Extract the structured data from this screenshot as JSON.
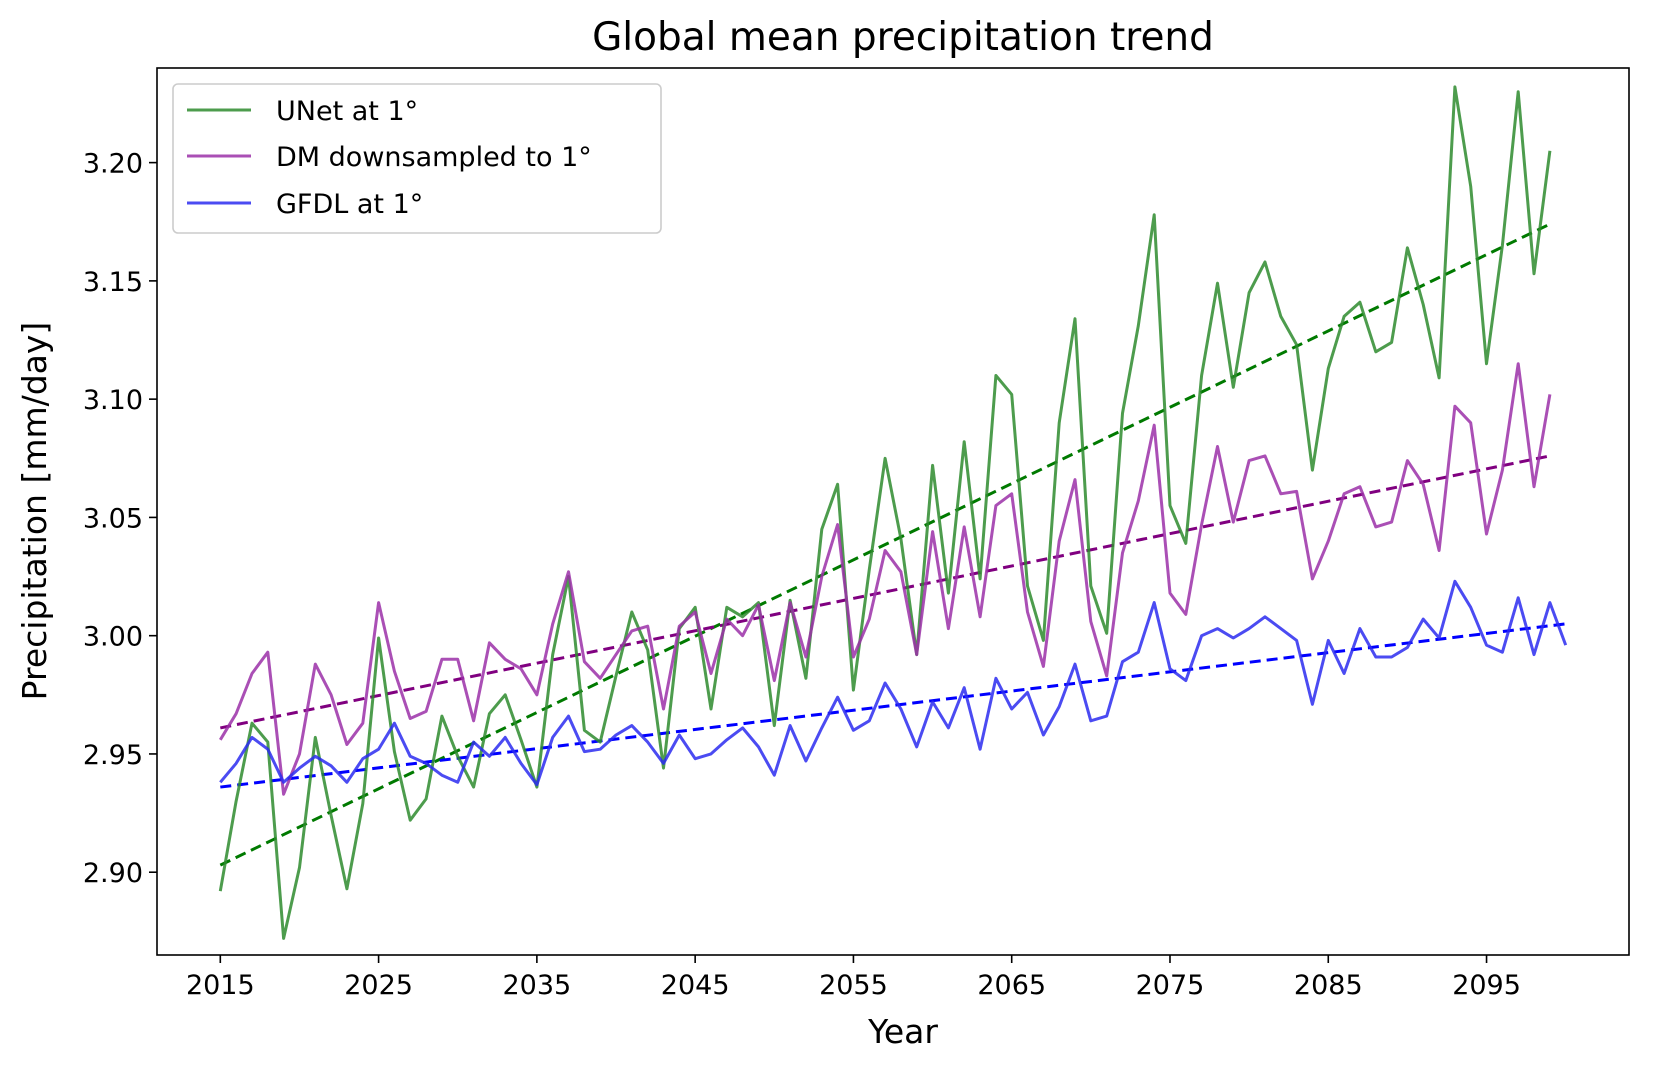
{
  "chart_data": {
    "type": "line",
    "title": "Global mean precipitation trend",
    "xlabel": "Year",
    "ylabel": "Precipitation [mm/day]",
    "xlim": [
      2011,
      2104
    ],
    "ylim": [
      2.865,
      3.24
    ],
    "xticks": [
      2015,
      2025,
      2035,
      2045,
      2055,
      2065,
      2075,
      2085,
      2095
    ],
    "yticks": [
      2.9,
      2.95,
      3.0,
      3.05,
      3.1,
      3.15,
      3.2
    ],
    "ytick_labels": [
      "2.90",
      "2.95",
      "3.00",
      "3.05",
      "3.10",
      "3.15",
      "3.20"
    ],
    "legend_position": "upper-left",
    "series": [
      {
        "name": "UNet at 1°",
        "color": "#2e8b2e",
        "x_start": 2015,
        "values": [
          2.892,
          2.93,
          2.963,
          2.955,
          2.872,
          2.902,
          2.957,
          2.924,
          2.893,
          2.929,
          2.999,
          2.951,
          2.922,
          2.931,
          2.966,
          2.949,
          2.936,
          2.967,
          2.975,
          2.956,
          2.936,
          2.992,
          3.025,
          2.96,
          2.955,
          2.983,
          3.01,
          2.994,
          2.944,
          3.003,
          3.012,
          2.969,
          3.012,
          3.008,
          3.014,
          2.962,
          3.015,
          2.982,
          3.045,
          3.064,
          2.977,
          3.028,
          3.075,
          3.041,
          2.992,
          3.072,
          3.018,
          3.082,
          3.024,
          3.11,
          3.102,
          3.021,
          2.998,
          3.09,
          3.134,
          3.021,
          3.001,
          3.094,
          3.131,
          3.178,
          3.055,
          3.039,
          3.11,
          3.149,
          3.105,
          3.145,
          3.158,
          3.135,
          3.123,
          3.07,
          3.113,
          3.135,
          3.141,
          3.12,
          3.124,
          3.164,
          3.14,
          3.109,
          3.232,
          3.19,
          3.115,
          3.165,
          3.23,
          3.153,
          3.205
        ]
      },
      {
        "name": "DM downsampled to 1°",
        "color": "#9b30a8",
        "x_start": 2015,
        "values": [
          2.956,
          2.967,
          2.984,
          2.993,
          2.933,
          2.95,
          2.988,
          2.975,
          2.954,
          2.963,
          3.014,
          2.985,
          2.965,
          2.968,
          2.99,
          2.99,
          2.964,
          2.997,
          2.99,
          2.986,
          2.975,
          3.005,
          3.027,
          2.989,
          2.982,
          2.992,
          3.002,
          3.004,
          2.969,
          3.004,
          3.01,
          2.984,
          3.007,
          3.0,
          3.013,
          2.981,
          3.014,
          2.991,
          3.025,
          3.047,
          2.991,
          3.007,
          3.036,
          3.027,
          2.992,
          3.044,
          3.003,
          3.046,
          3.008,
          3.055,
          3.06,
          3.01,
          2.987,
          3.04,
          3.066,
          3.006,
          2.983,
          3.035,
          3.057,
          3.089,
          3.018,
          3.009,
          3.047,
          3.08,
          3.048,
          3.074,
          3.076,
          3.06,
          3.061,
          3.024,
          3.04,
          3.06,
          3.063,
          3.046,
          3.048,
          3.074,
          3.064,
          3.036,
          3.097,
          3.09,
          3.043,
          3.07,
          3.115,
          3.063,
          3.102
        ]
      },
      {
        "name": "GFDL at 1°",
        "color": "#2b2bf0",
        "x_start": 2015,
        "values": [
          2.938,
          2.946,
          2.957,
          2.952,
          2.938,
          2.944,
          2.949,
          2.945,
          2.938,
          2.948,
          2.952,
          2.963,
          2.949,
          2.946,
          2.941,
          2.938,
          2.955,
          2.949,
          2.957,
          2.946,
          2.937,
          2.957,
          2.966,
          2.951,
          2.952,
          2.958,
          2.962,
          2.955,
          2.946,
          2.958,
          2.948,
          2.95,
          2.956,
          2.961,
          2.953,
          2.941,
          2.962,
          2.947,
          2.961,
          2.974,
          2.96,
          2.964,
          2.98,
          2.969,
          2.953,
          2.972,
          2.961,
          2.978,
          2.952,
          2.982,
          2.969,
          2.976,
          2.958,
          2.97,
          2.988,
          2.964,
          2.966,
          2.989,
          2.993,
          3.014,
          2.986,
          2.981,
          3.0,
          3.003,
          2.999,
          3.003,
          3.008,
          3.003,
          2.998,
          2.971,
          2.998,
          2.984,
          3.003,
          2.991,
          2.991,
          2.995,
          3.007,
          2.999,
          3.023,
          3.012,
          2.996,
          2.993,
          3.016,
          2.992,
          3.014,
          2.996
        ]
      }
    ],
    "trendlines": [
      {
        "series": "UNet at 1°",
        "color": "#007a00",
        "x": [
          2015,
          2099
        ],
        "y": [
          2.903,
          3.174
        ]
      },
      {
        "series": "DM downsampled to 1°",
        "color": "#800080",
        "x": [
          2015,
          2099
        ],
        "y": [
          2.961,
          3.076
        ]
      },
      {
        "series": "GFDL at 1°",
        "color": "#0000ff",
        "x": [
          2015,
          2100
        ],
        "y": [
          2.936,
          3.005
        ]
      }
    ]
  }
}
